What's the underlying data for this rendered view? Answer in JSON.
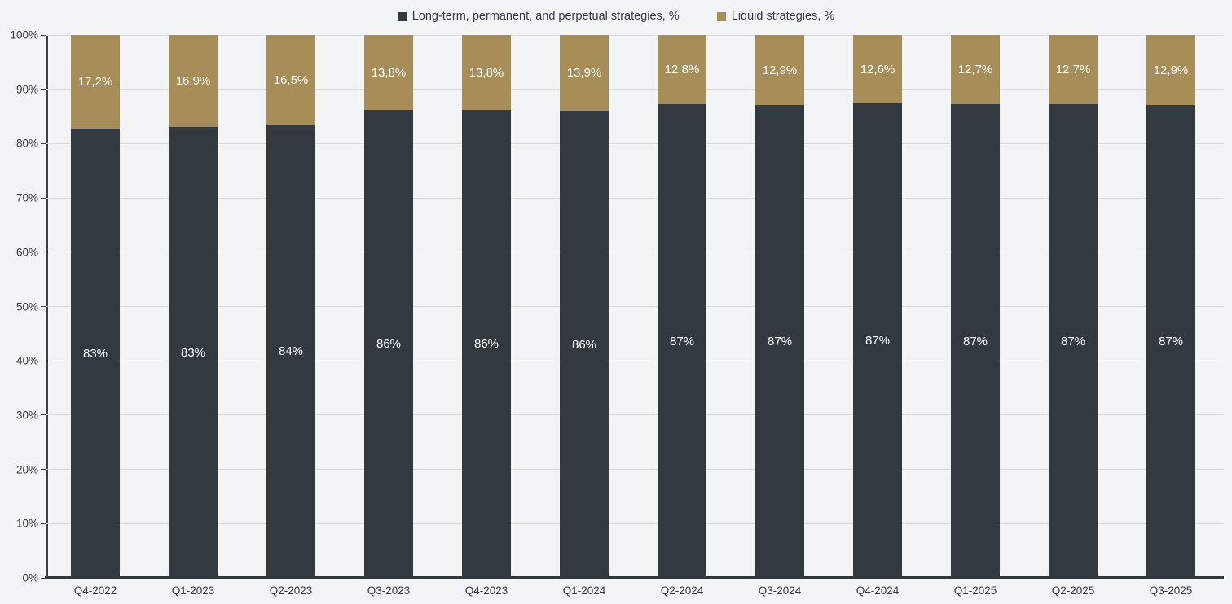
{
  "colors": {
    "background": "#f3f4f6",
    "gridline": "#d9dadc",
    "axis_line": "#323a40",
    "tick_label": "#343c42",
    "series_longterm": "#323a40",
    "series_liquid": "#a78d58",
    "bar_label": "#ffffff"
  },
  "legend": {
    "items": [
      {
        "label": "Long-term, permanent, and perpetual strategies, %",
        "color": "#323a40"
      },
      {
        "label": "Liquid strategies, %",
        "color": "#a78d58"
      }
    ]
  },
  "chart_data": {
    "type": "bar",
    "stacked": true,
    "stacking": "percent",
    "title": "",
    "xlabel": "",
    "ylabel": "",
    "ylim": [
      0,
      100
    ],
    "grid": true,
    "legend_position": "top",
    "categories": [
      "Q4-2022",
      "Q1-2023",
      "Q2-2023",
      "Q3-2023",
      "Q4-2023",
      "Q1-2024",
      "Q2-2024",
      "Q3-2024",
      "Q4-2024",
      "Q1-2025",
      "Q2-2025",
      "Q3-2025"
    ],
    "y_ticks": [
      "0%",
      "10%",
      "20%",
      "30%",
      "40%",
      "50%",
      "60%",
      "70%",
      "80%",
      "90%",
      "100%"
    ],
    "series": [
      {
        "name": "Long-term, permanent, and perpetual strategies, %",
        "color": "#323a40",
        "values": [
          82.8,
          83.1,
          83.5,
          86.2,
          86.2,
          86.1,
          87.2,
          87.1,
          87.4,
          87.3,
          87.3,
          87.1
        ],
        "labels": [
          "83%",
          "83%",
          "84%",
          "86%",
          "86%",
          "86%",
          "87%",
          "87%",
          "87%",
          "87%",
          "87%",
          "87%"
        ]
      },
      {
        "name": "Liquid strategies, %",
        "color": "#a78d58",
        "values": [
          17.2,
          16.9,
          16.5,
          13.8,
          13.8,
          13.9,
          12.8,
          12.9,
          12.6,
          12.7,
          12.7,
          12.9
        ],
        "labels": [
          "17,2%",
          "16,9%",
          "16,5%",
          "13,8%",
          "13,8%",
          "13,9%",
          "12,8%",
          "12,9%",
          "12,6%",
          "12,7%",
          "12,7%",
          "12,9%"
        ]
      }
    ]
  }
}
